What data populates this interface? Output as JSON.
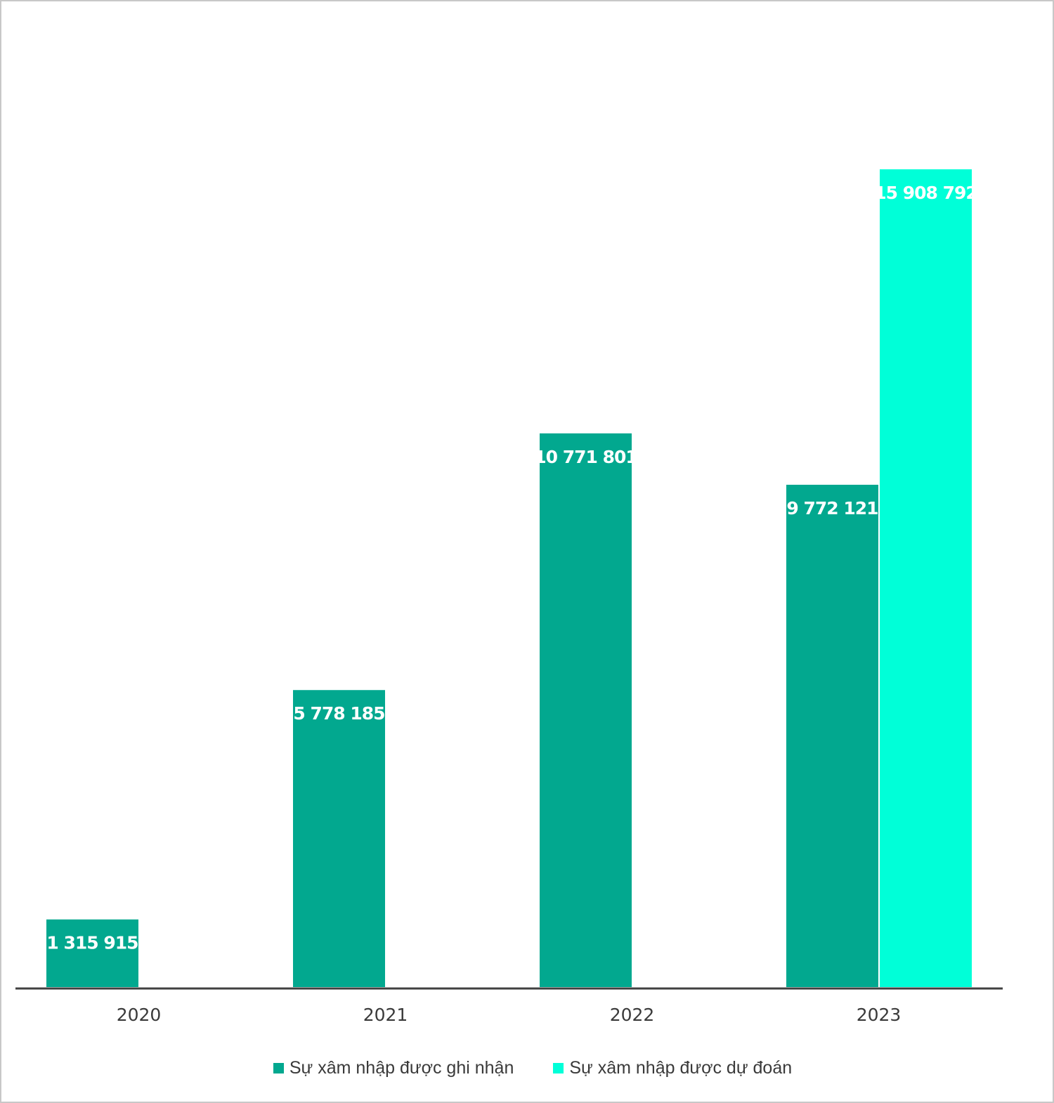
{
  "chart_data": {
    "type": "bar",
    "categories": [
      "2020",
      "2021",
      "2022",
      "2023"
    ],
    "series": [
      {
        "name": "Sự xâm nhập được ghi nhận",
        "color": "#02A88F",
        "values": [
          1315915,
          5778185,
          10771801,
          9772121
        ],
        "labels": [
          "1 315 915",
          "5 778 185",
          "10 771 801",
          "9 772 121"
        ]
      },
      {
        "name": "Sự xâm nhập được dự đoán",
        "color": "#00FFD8",
        "values": [
          null,
          null,
          null,
          15908792
        ],
        "labels": [
          null,
          null,
          null,
          "15 908 792"
        ]
      }
    ],
    "ylim": [
      0,
      20000000
    ],
    "grid": false,
    "legend_position": "bottom",
    "axis_color": "#404040"
  },
  "legend": {
    "recorded": "Sự xâm nhập được ghi nhận",
    "predicted": "Sự xâm nhập được dự đoán"
  }
}
